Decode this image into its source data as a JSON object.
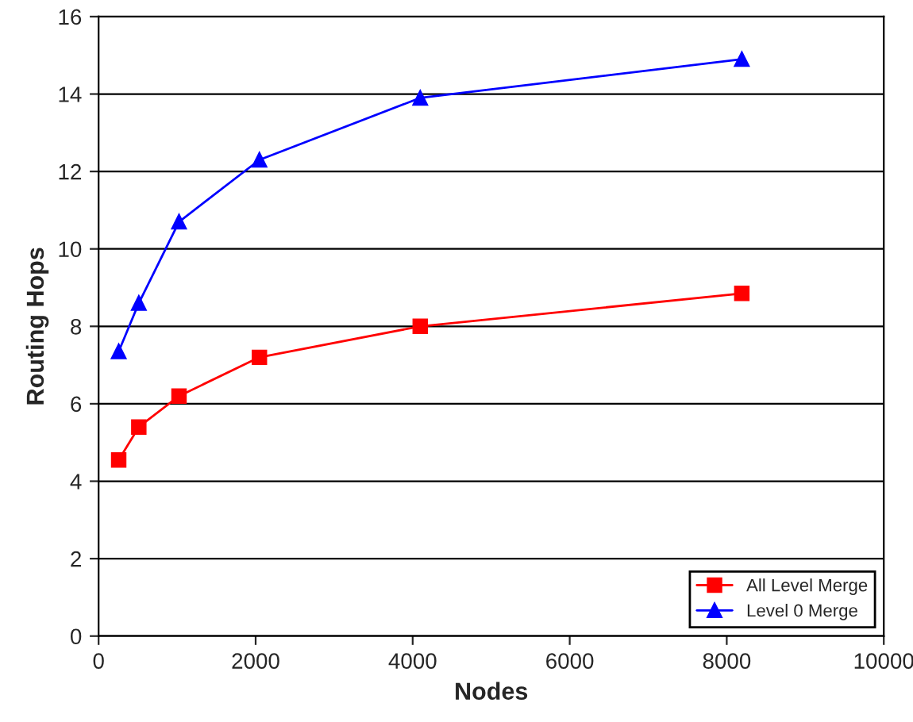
{
  "chart_data": {
    "type": "line",
    "xlabel": "Nodes",
    "ylabel": "Routing Hops",
    "x": [
      256,
      512,
      1024,
      2048,
      4096,
      8192
    ],
    "series": [
      {
        "name": "All Level Merge",
        "color": "#ff0000",
        "marker": "square",
        "values": [
          4.55,
          5.4,
          6.2,
          7.2,
          8.0,
          8.85
        ]
      },
      {
        "name": "Level 0 Merge",
        "color": "#0000ff",
        "marker": "triangle",
        "values": [
          7.35,
          8.6,
          10.7,
          12.3,
          13.9,
          14.9
        ]
      }
    ],
    "xlim": [
      0,
      10000
    ],
    "xticks": [
      0,
      2000,
      4000,
      6000,
      8000,
      10000
    ],
    "ylim": [
      0,
      16
    ],
    "yticks": [
      0,
      2,
      4,
      6,
      8,
      10,
      12,
      14,
      16
    ],
    "grid": "y",
    "legend": "bottom right",
    "line_style": "solid"
  }
}
